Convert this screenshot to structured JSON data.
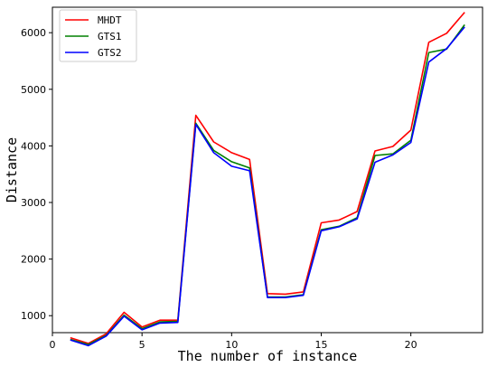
{
  "chart_data": {
    "type": "line",
    "xlabel": "The number of instance",
    "ylabel": "Distance",
    "xlim": [
      0,
      24
    ],
    "ylim": [
      700,
      6450
    ],
    "x_ticks": [
      0,
      5,
      10,
      15,
      20
    ],
    "y_ticks": [
      1000,
      2000,
      3000,
      4000,
      5000,
      6000
    ],
    "grid": false,
    "legend": "top-left",
    "x": [
      1,
      2,
      3,
      4,
      5,
      6,
      7,
      8,
      9,
      10,
      11,
      12,
      13,
      14,
      15,
      16,
      17,
      18,
      19,
      20,
      21,
      22,
      23
    ],
    "series": [
      {
        "name": "MHDT",
        "color": "#ff0000",
        "values": [
          610,
          510,
          680,
          1060,
          800,
          920,
          920,
          4540,
          4070,
          3880,
          3760,
          1390,
          1380,
          1420,
          2640,
          2690,
          2840,
          3910,
          3990,
          4280,
          5830,
          5990,
          6360
        ]
      },
      {
        "name": "GTS1",
        "color": "#008000",
        "values": [
          580,
          490,
          650,
          1010,
          770,
          890,
          900,
          4400,
          3920,
          3720,
          3610,
          1330,
          1330,
          1370,
          2520,
          2580,
          2730,
          3830,
          3860,
          4100,
          5650,
          5710,
          6140
        ]
      },
      {
        "name": "GTS2",
        "color": "#0000ff",
        "values": [
          570,
          470,
          640,
          990,
          750,
          870,
          880,
          4380,
          3880,
          3640,
          3560,
          1320,
          1320,
          1360,
          2500,
          2570,
          2710,
          3710,
          3840,
          4060,
          5480,
          5720,
          6100
        ]
      }
    ]
  }
}
